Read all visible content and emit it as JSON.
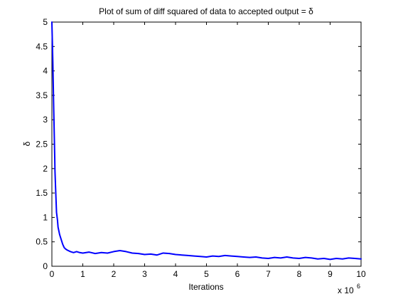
{
  "chart_data": {
    "type": "line",
    "title": "Plot of sum of diff squared of data to accepted output = δ",
    "xlabel": "Iterations",
    "ylabel": "δ",
    "x_multiplier_label": "x 10",
    "x_multiplier_exponent": "6",
    "xlim": [
      0,
      10
    ],
    "ylim": [
      0,
      5
    ],
    "x_ticks": [
      "0",
      "1",
      "2",
      "3",
      "4",
      "5",
      "6",
      "7",
      "8",
      "9",
      "10"
    ],
    "y_ticks": [
      "0",
      "0.5",
      "1",
      "1.5",
      "2",
      "2.5",
      "3",
      "3.5",
      "4",
      "4.5",
      "5"
    ],
    "grid": false,
    "series": [
      {
        "color": "#0000ff",
        "x": [
          0.0,
          0.03,
          0.06,
          0.09,
          0.1,
          0.12,
          0.15,
          0.18,
          0.2,
          0.25,
          0.3,
          0.35,
          0.4,
          0.45,
          0.5,
          0.6,
          0.7,
          0.8,
          0.9,
          1.0,
          1.2,
          1.4,
          1.6,
          1.8,
          2.0,
          2.2,
          2.4,
          2.6,
          2.8,
          3.0,
          3.2,
          3.4,
          3.6,
          3.8,
          4.0,
          4.2,
          4.4,
          4.6,
          4.8,
          5.0,
          5.2,
          5.4,
          5.6,
          5.8,
          6.0,
          6.2,
          6.4,
          6.6,
          6.8,
          7.0,
          7.2,
          7.4,
          7.6,
          7.8,
          8.0,
          8.2,
          8.4,
          8.6,
          8.8,
          9.0,
          9.2,
          9.4,
          9.6,
          9.8,
          10.0
        ],
        "y": [
          5.0,
          4.2,
          3.2,
          2.3,
          1.95,
          1.6,
          1.1,
          0.95,
          0.8,
          0.65,
          0.55,
          0.45,
          0.38,
          0.35,
          0.33,
          0.3,
          0.28,
          0.3,
          0.28,
          0.27,
          0.29,
          0.26,
          0.28,
          0.27,
          0.3,
          0.32,
          0.3,
          0.27,
          0.26,
          0.24,
          0.25,
          0.23,
          0.27,
          0.26,
          0.24,
          0.23,
          0.22,
          0.21,
          0.2,
          0.19,
          0.21,
          0.2,
          0.22,
          0.21,
          0.2,
          0.19,
          0.18,
          0.19,
          0.17,
          0.16,
          0.18,
          0.17,
          0.19,
          0.17,
          0.16,
          0.18,
          0.17,
          0.15,
          0.16,
          0.14,
          0.16,
          0.15,
          0.17,
          0.16,
          0.15
        ]
      }
    ]
  }
}
